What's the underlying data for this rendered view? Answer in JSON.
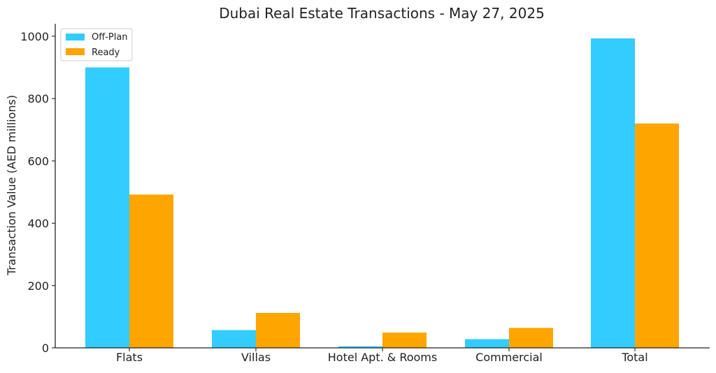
{
  "chart_data": {
    "type": "bar",
    "title": "Dubai Real Estate Transactions - May 27, 2025",
    "xlabel": "",
    "ylabel": "Transaction Value (AED millions)",
    "categories": [
      "Flats",
      "Villas",
      "Hotel Apt. & Rooms",
      "Commercial",
      "Total"
    ],
    "series": [
      {
        "name": "Off-Plan",
        "color": "#33ccff",
        "values": [
          900,
          57,
          5,
          28,
          993
        ]
      },
      {
        "name": "Ready",
        "color": "#ffa500",
        "values": [
          492,
          112,
          49,
          64,
          720
        ]
      }
    ],
    "ylim": [
      0,
      1040
    ],
    "yticks": [
      0,
      200,
      400,
      600,
      800,
      1000
    ],
    "legend": "top-left",
    "grid": false
  }
}
